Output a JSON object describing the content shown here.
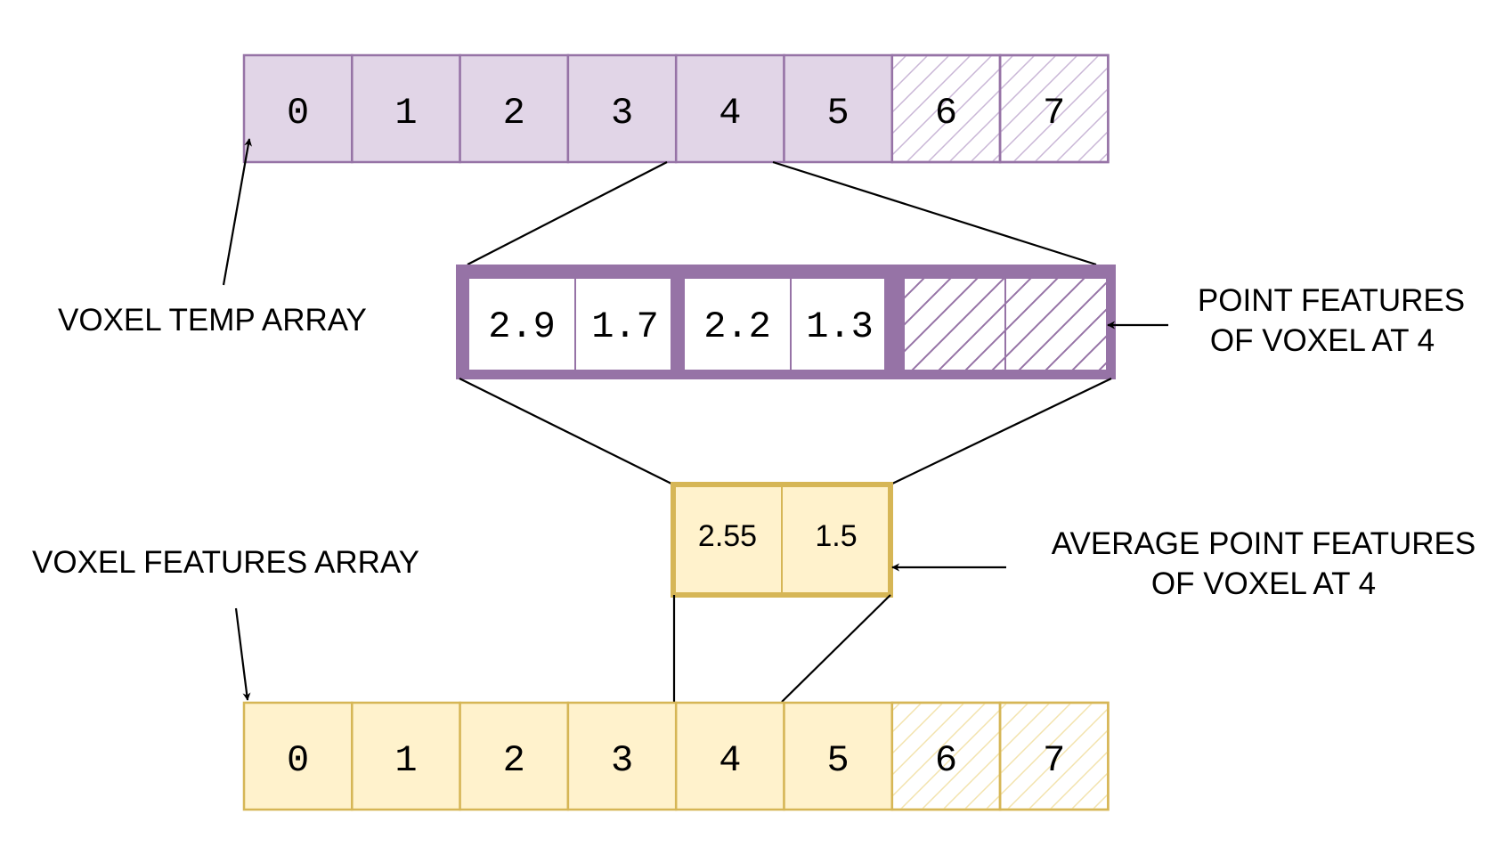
{
  "colors": {
    "purple_fill": "#e1d5e7",
    "purple_stroke": "#9673a6",
    "yellow_fill": "#fff2cc",
    "yellow_stroke": "#d6b656",
    "hatch_purple": "#c9b6d6",
    "hatch_purple_strong": "#9673a6",
    "hatch_yellow": "#f3e3ad",
    "text": "#000000"
  },
  "temp_array": {
    "cells": [
      "0",
      "1",
      "2",
      "3",
      "4",
      "5",
      "6",
      "7"
    ],
    "filled_count": 6
  },
  "features_array": {
    "cells": [
      "0",
      "1",
      "2",
      "3",
      "4",
      "5",
      "6",
      "7"
    ],
    "filled_count": 6
  },
  "point_features": {
    "values": [
      "2.9",
      "1.7",
      "2.2",
      "1.3"
    ],
    "empty_cells": 2
  },
  "average_features": {
    "values": [
      "2.55",
      "1.5"
    ]
  },
  "labels": {
    "voxel_temp_array": "VOXEL TEMP ARRAY",
    "voxel_features_array": "VOXEL FEATURES ARRAY",
    "point_features_line1": "POINT FEATURES",
    "point_features_line2": "OF VOXEL AT 4",
    "average_features_line1": "AVERAGE POINT FEATURES",
    "average_features_line2": "OF VOXEL AT 4"
  }
}
